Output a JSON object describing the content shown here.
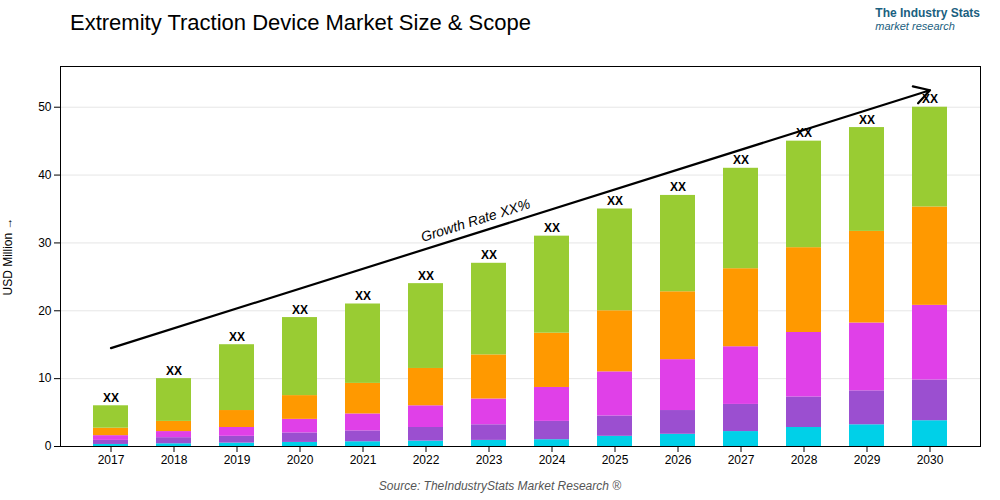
{
  "chart_data": {
    "type": "bar",
    "stacked": true,
    "title": "Extremity Traction Device Market Size & Scope",
    "ylabel": "USD Million",
    "categories": [
      "2017",
      "2018",
      "2019",
      "2020",
      "2021",
      "2022",
      "2023",
      "2024",
      "2025",
      "2026",
      "2027",
      "2028",
      "2029",
      "2030"
    ],
    "series": [
      {
        "color": "#00d0e8",
        "values": [
          0.3,
          0.4,
          0.5,
          0.6,
          0.7,
          0.8,
          0.9,
          1.0,
          1.5,
          1.8,
          2.2,
          2.8,
          3.2,
          3.8
        ]
      },
      {
        "color": "#9b4fd0",
        "values": [
          0.6,
          0.9,
          1.0,
          1.4,
          1.6,
          2.0,
          2.3,
          2.7,
          3.0,
          3.5,
          4.0,
          4.5,
          5.0,
          6.0
        ]
      },
      {
        "color": "#e040e8",
        "values": [
          0.7,
          0.9,
          1.3,
          2.0,
          2.5,
          3.2,
          3.8,
          5.0,
          6.5,
          7.5,
          8.5,
          9.5,
          10.0,
          11.0
        ]
      },
      {
        "color": "#ff9900",
        "values": [
          1.1,
          1.5,
          2.5,
          3.5,
          4.5,
          5.5,
          6.5,
          8.0,
          9.0,
          10.0,
          11.5,
          12.5,
          13.5,
          14.5
        ]
      },
      {
        "color": "#99cc33",
        "values": [
          3.3,
          6.3,
          9.7,
          11.5,
          11.7,
          12.5,
          13.5,
          14.3,
          15.0,
          14.2,
          14.8,
          15.7,
          15.3,
          14.7
        ]
      }
    ],
    "ylim": [
      0,
      56
    ],
    "yticks": [
      0,
      10,
      20,
      30,
      40,
      50
    ],
    "grid": true,
    "bar_labels": [
      "XX",
      "XX",
      "XX",
      "XX",
      "XX",
      "XX",
      "XX",
      "XX",
      "XX",
      "XX",
      "XX",
      "XX",
      "XX",
      "XX"
    ],
    "annotations": [
      {
        "text": "Growth Rate XX%",
        "arrow": {
          "x_start": "2017",
          "y_start": 14.5,
          "x_end": "2030",
          "y_end": 52.5
        }
      }
    ],
    "source": "Source: TheIndustryStats Market Research ®",
    "logo": [
      "The Industry Stats",
      "market research"
    ]
  }
}
